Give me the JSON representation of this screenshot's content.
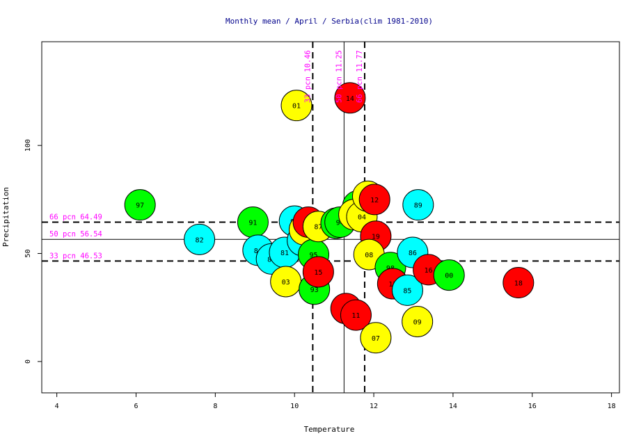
{
  "chart_data": {
    "type": "scatter",
    "title": "Monthly mean / April / Serbia(clim 1981-2010)",
    "xlabel": "Temperature",
    "ylabel": "Precipitation",
    "xlim": [
      3.62,
      18.2
    ],
    "ylim": [
      -14.5,
      148
    ],
    "xticks": [
      4,
      6,
      8,
      10,
      12,
      14,
      16,
      18
    ],
    "yticks": [
      0,
      50,
      100
    ],
    "grid": false,
    "legend": "none",
    "hlines": [
      {
        "label": "66 pcn 64.49",
        "value": 64.49,
        "style": "dashed"
      },
      {
        "label": "50 pcn 56.54",
        "value": 56.54,
        "style": "solid"
      },
      {
        "label": "33 pcn 46.53",
        "value": 46.53,
        "style": "dashed"
      }
    ],
    "vlines": [
      {
        "label": "33 pcn 10.46",
        "value": 10.46,
        "style": "dashed"
      },
      {
        "label": "50 pcn 11.25",
        "value": 11.25,
        "style": "solid"
      },
      {
        "label": "66 pcn 11.77",
        "value": 11.77,
        "style": "dashed"
      }
    ],
    "colors": {
      "red": "#ff0000",
      "yellow": "#ffff00",
      "green": "#00ff00",
      "cyan": "#00ffff",
      "title": "#00008b",
      "annotation": "#ff00ff"
    },
    "points": [
      {
        "label": "97",
        "x": 6.1,
        "y": 72.5,
        "color": "green"
      },
      {
        "label": "82",
        "x": 7.6,
        "y": 56.5,
        "color": "cyan"
      },
      {
        "label": "91",
        "x": 8.95,
        "y": 64.5,
        "color": "green"
      },
      {
        "label": "84",
        "x": 9.08,
        "y": 51.5,
        "color": "cyan"
      },
      {
        "label": "88",
        "x": 9.42,
        "y": 47.5,
        "color": "cyan"
      },
      {
        "label": "81",
        "x": 9.75,
        "y": 50.5,
        "color": "cyan"
      },
      {
        "label": "03",
        "x": 9.78,
        "y": 37.0,
        "color": "yellow"
      },
      {
        "label": "01",
        "x": 10.05,
        "y": 118.5,
        "color": "yellow"
      },
      {
        "label": "92",
        "x": 10.0,
        "y": 65.0,
        "color": "cyan"
      },
      {
        "label": "90",
        "x": 10.2,
        "y": 56.0,
        "color": "cyan"
      },
      {
        "label": "02",
        "x": 10.25,
        "y": 61.0,
        "color": "yellow"
      },
      {
        "label": "17",
        "x": 10.35,
        "y": 64.5,
        "color": "red"
      },
      {
        "label": "95",
        "x": 10.48,
        "y": 49.5,
        "color": "green"
      },
      {
        "label": "93",
        "x": 10.5,
        "y": 33.5,
        "color": "green"
      },
      {
        "label": "15",
        "x": 10.6,
        "y": 41.5,
        "color": "red"
      },
      {
        "label": "87",
        "x": 10.6,
        "y": 62.5,
        "color": "yellow"
      },
      {
        "label": "83",
        "x": 11.05,
        "y": 64.0,
        "color": "green"
      },
      {
        "label": "94",
        "x": 11.15,
        "y": 64.5,
        "color": "green"
      },
      {
        "label": "14",
        "x": 11.4,
        "y": 122.0,
        "color": "red"
      },
      {
        "label": "20",
        "x": 11.3,
        "y": 24.5,
        "color": "red"
      },
      {
        "label": "11",
        "x": 11.55,
        "y": 21.5,
        "color": "red"
      },
      {
        "label": "99",
        "x": 11.6,
        "y": 72.0,
        "color": "green"
      },
      {
        "label": "10",
        "x": 11.5,
        "y": 68.0,
        "color": "yellow"
      },
      {
        "label": "04",
        "x": 11.7,
        "y": 67.0,
        "color": "yellow"
      },
      {
        "label": "05",
        "x": 11.85,
        "y": 76.5,
        "color": "yellow"
      },
      {
        "label": "12",
        "x": 12.02,
        "y": 75.0,
        "color": "red"
      },
      {
        "label": "19",
        "x": 12.05,
        "y": 58.0,
        "color": "red"
      },
      {
        "label": "08",
        "x": 11.88,
        "y": 49.5,
        "color": "yellow"
      },
      {
        "label": "07",
        "x": 12.05,
        "y": 11.0,
        "color": "yellow"
      },
      {
        "label": "98",
        "x": 12.42,
        "y": 43.5,
        "color": "green"
      },
      {
        "label": "13",
        "x": 12.48,
        "y": 36.0,
        "color": "red"
      },
      {
        "label": "85",
        "x": 12.85,
        "y": 33.0,
        "color": "cyan"
      },
      {
        "label": "86",
        "x": 12.98,
        "y": 50.5,
        "color": "cyan"
      },
      {
        "label": "89",
        "x": 13.12,
        "y": 72.5,
        "color": "cyan"
      },
      {
        "label": "09",
        "x": 13.1,
        "y": 18.5,
        "color": "yellow"
      },
      {
        "label": "16",
        "x": 13.38,
        "y": 42.5,
        "color": "red"
      },
      {
        "label": "00",
        "x": 13.9,
        "y": 40.0,
        "color": "green"
      },
      {
        "label": "18",
        "x": 15.65,
        "y": 36.5,
        "color": "red"
      }
    ]
  }
}
